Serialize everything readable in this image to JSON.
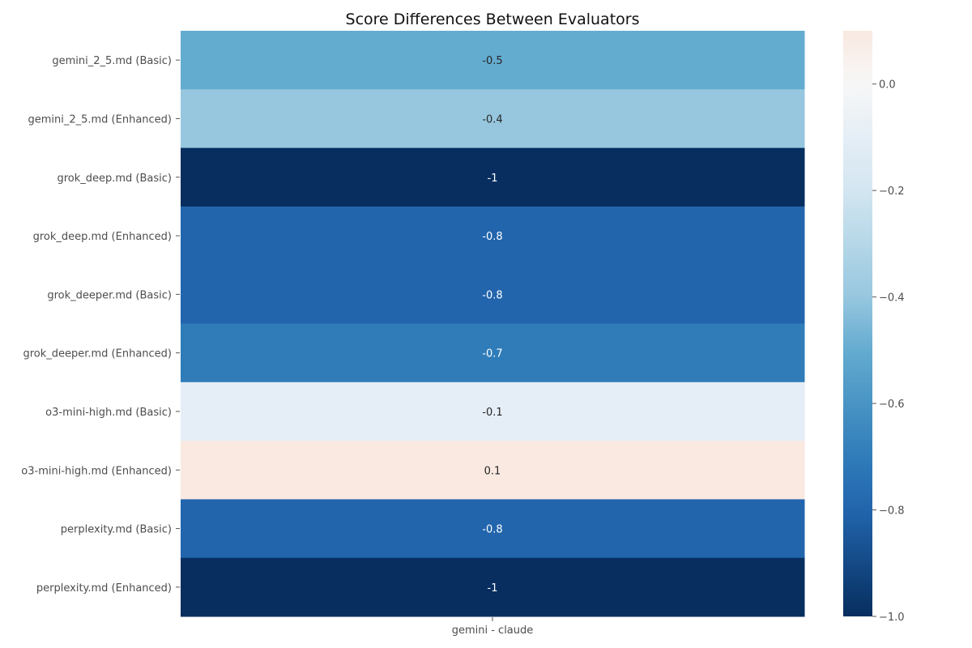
{
  "chart_data": {
    "type": "heatmap",
    "title": "Score Differences Between Evaluators",
    "columns": [
      "gemini - claude"
    ],
    "rows": [
      "gemini_2_5.md (Basic)",
      "gemini_2_5.md (Enhanced)",
      "grok_deep.md (Basic)",
      "grok_deep.md (Enhanced)",
      "grok_deeper.md (Basic)",
      "grok_deeper.md (Enhanced)",
      "o3-mini-high.md (Basic)",
      "o3-mini-high.md (Enhanced)",
      "perplexity.md (Basic)",
      "perplexity.md (Enhanced)"
    ],
    "values": [
      -0.5,
      -0.4,
      -1,
      -0.8,
      -0.8,
      -0.7,
      -0.1,
      0.1,
      -0.8,
      -1
    ],
    "annotations": [
      "-0.5",
      "-0.4",
      "-1",
      "-0.8",
      "-0.8",
      "-0.7",
      "-0.1",
      "0.1",
      "-0.8",
      "-1"
    ],
    "colorbar": {
      "range": [
        -1.0,
        0.1
      ],
      "ticks": [
        0.0,
        -0.2,
        -0.4,
        -0.6,
        -0.8,
        -1.0
      ],
      "tick_labels": [
        "0.0",
        "−0.2",
        "−0.4",
        "−0.6",
        "−0.8",
        "−1.0"
      ]
    },
    "colormap": "RdBu_r",
    "colors": {
      "-1.0": "#072e5f",
      "-0.8": "#2265ad",
      "-0.7": "#2f7cb9",
      "-0.6": "#4994c4",
      "-0.5": "#64abd0",
      "-0.4": "#97c7df",
      "-0.2": "#d3e6f1",
      "-0.1": "#e5eef6",
      "0.0": "#f7f7f7",
      "0.1": "#f9e9e1"
    }
  }
}
